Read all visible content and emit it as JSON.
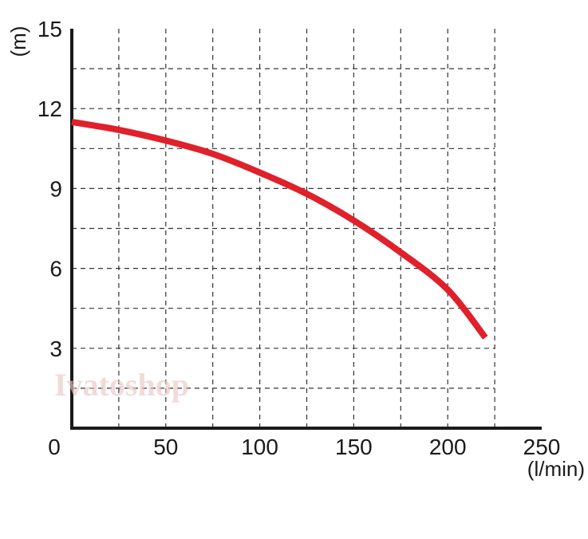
{
  "chart_data": {
    "type": "line",
    "title": "",
    "xlabel": "(l/min)",
    "ylabel": "(m)",
    "xlim": [
      0,
      250
    ],
    "ylim": [
      0,
      15
    ],
    "x_ticks": [
      "0",
      "50",
      "100",
      "150",
      "200",
      "250"
    ],
    "y_ticks": [
      "3",
      "6",
      "9",
      "12",
      "15"
    ],
    "grid": true,
    "grid_style": "dashed",
    "watermark": "Ivatoshop",
    "series": [
      {
        "color": "#e0202a",
        "x": [
          0,
          25,
          50,
          75,
          100,
          125,
          150,
          175,
          200,
          220
        ],
        "y": [
          11.5,
          11.2,
          10.8,
          10.3,
          9.6,
          8.8,
          7.8,
          6.6,
          5.2,
          3.4
        ]
      }
    ]
  }
}
